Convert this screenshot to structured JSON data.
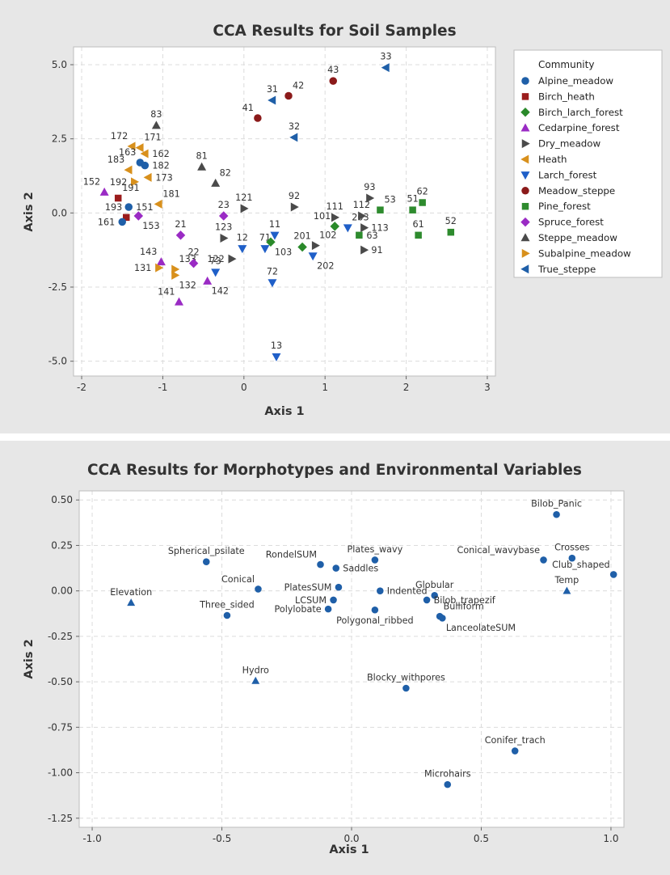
{
  "chart_data": [
    {
      "type": "scatter",
      "title": "CCA Results for Soil Samples",
      "xlabel": "Axis 1",
      "ylabel": "Axis 2",
      "xlim": [
        -2.1,
        3.1
      ],
      "ylim": [
        -5.5,
        5.6
      ],
      "xticks": [
        -2,
        -1,
        0,
        1,
        2,
        3
      ],
      "yticks": [
        -5.0,
        -2.5,
        0.0,
        2.5,
        5.0
      ],
      "xtick_labels": [
        "-2",
        "-1",
        "0",
        "1",
        "2",
        "3"
      ],
      "ytick_labels": [
        "-5.0",
        "-2.5",
        "0.0",
        "2.5",
        "5.0"
      ],
      "grid": true,
      "legend": {
        "title": "Community",
        "position": "right",
        "entries": [
          {
            "name": "Alpine_meadow",
            "marker": "circle",
            "color": "#1f5fa8"
          },
          {
            "name": "Birch_heath",
            "marker": "square",
            "color": "#9b1c1c"
          },
          {
            "name": "Birch_larch_forest",
            "marker": "diamond",
            "color": "#2a8a2a"
          },
          {
            "name": "Cedarpine_forest",
            "marker": "triangle-up",
            "color": "#9a2bc4"
          },
          {
            "name": "Dry_meadow",
            "marker": "triangle-right",
            "color": "#4a4a4a"
          },
          {
            "name": "Heath",
            "marker": "triangle-left",
            "color": "#d8901c"
          },
          {
            "name": "Larch_forest",
            "marker": "triangle-down",
            "color": "#1f5fc8"
          },
          {
            "name": "Meadow_steppe",
            "marker": "circle",
            "color": "#8b1a1a"
          },
          {
            "name": "Pine_forest",
            "marker": "square",
            "color": "#2e8b2e"
          },
          {
            "name": "Spruce_forest",
            "marker": "diamond",
            "color": "#9a2bc4"
          },
          {
            "name": "Steppe_meadow",
            "marker": "triangle-up",
            "color": "#4a4a4a"
          },
          {
            "name": "Subalpine_meadow",
            "marker": "triangle-right",
            "color": "#d8901c"
          },
          {
            "name": "True_steppe",
            "marker": "triangle-left",
            "color": "#1f5fa8"
          }
        ]
      },
      "points": [
        {
          "label": "33",
          "x": 1.75,
          "y": 4.9,
          "group": 12,
          "lpos": "t"
        },
        {
          "label": "43",
          "x": 1.1,
          "y": 4.45,
          "group": 7,
          "lpos": "t"
        },
        {
          "label": "42",
          "x": 0.55,
          "y": 3.95,
          "group": 7,
          "lpos": "tr"
        },
        {
          "label": "31",
          "x": 0.35,
          "y": 3.8,
          "group": 12,
          "lpos": "t"
        },
        {
          "label": "41",
          "x": 0.17,
          "y": 3.2,
          "group": 7,
          "lpos": "tl"
        },
        {
          "label": "32",
          "x": 0.62,
          "y": 2.55,
          "group": 12,
          "lpos": "t"
        },
        {
          "label": "83",
          "x": -1.08,
          "y": 2.95,
          "group": 10,
          "lpos": "t"
        },
        {
          "label": "172",
          "x": -1.38,
          "y": 2.25,
          "group": 5,
          "lpos": "tl"
        },
        {
          "label": "171",
          "x": -1.28,
          "y": 2.2,
          "group": 5,
          "lpos": "tr"
        },
        {
          "label": "162",
          "x": -1.22,
          "y": 2.0,
          "group": 5,
          "lpos": "r"
        },
        {
          "label": "163",
          "x": -1.28,
          "y": 1.7,
          "group": 0,
          "lpos": "tl"
        },
        {
          "label": "182",
          "x": -1.22,
          "y": 1.6,
          "group": 0,
          "lpos": "r"
        },
        {
          "label": "183",
          "x": -1.42,
          "y": 1.45,
          "group": 5,
          "lpos": "tl"
        },
        {
          "label": "173",
          "x": -1.18,
          "y": 1.2,
          "group": 5,
          "lpos": "r"
        },
        {
          "label": "192",
          "x": -1.35,
          "y": 1.05,
          "group": 11,
          "lpos": "l"
        },
        {
          "label": "81",
          "x": -0.52,
          "y": 1.55,
          "group": 10,
          "lpos": "t"
        },
        {
          "label": "82",
          "x": -0.35,
          "y": 1.0,
          "group": 10,
          "lpos": "tr"
        },
        {
          "label": "152",
          "x": -1.72,
          "y": 0.7,
          "group": 3,
          "lpos": "tl"
        },
        {
          "label": "191",
          "x": -1.55,
          "y": 0.5,
          "group": 1,
          "lpos": "tr"
        },
        {
          "label": "181",
          "x": -1.05,
          "y": 0.3,
          "group": 5,
          "lpos": "tr"
        },
        {
          "label": "151",
          "x": -1.42,
          "y": 0.2,
          "group": 0,
          "lpos": "r"
        },
        {
          "label": "193",
          "x": -1.45,
          "y": -0.15,
          "group": 1,
          "lpos": "tl"
        },
        {
          "label": "161",
          "x": -1.5,
          "y": -0.3,
          "group": 0,
          "lpos": "l"
        },
        {
          "label": "153",
          "x": -1.3,
          "y": -0.1,
          "group": 9,
          "lpos": "br"
        },
        {
          "label": "23",
          "x": -0.25,
          "y": -0.1,
          "group": 9,
          "lpos": "t"
        },
        {
          "label": "121",
          "x": 0.0,
          "y": 0.15,
          "group": 4,
          "lpos": "t"
        },
        {
          "label": "92",
          "x": 0.62,
          "y": 0.2,
          "group": 4,
          "lpos": "t"
        },
        {
          "label": "21",
          "x": -0.78,
          "y": -0.75,
          "group": 9,
          "lpos": "t"
        },
        {
          "label": "123",
          "x": -0.25,
          "y": -0.85,
          "group": 4,
          "lpos": "t"
        },
        {
          "label": "12",
          "x": -0.02,
          "y": -1.2,
          "group": 6,
          "lpos": "t"
        },
        {
          "label": "122",
          "x": -0.15,
          "y": -1.55,
          "group": 4,
          "lpos": "l"
        },
        {
          "label": "11",
          "x": 0.38,
          "y": -0.75,
          "group": 6,
          "lpos": "t"
        },
        {
          "label": "71",
          "x": 0.26,
          "y": -1.2,
          "group": 6,
          "lpos": "t"
        },
        {
          "label": "103",
          "x": 0.33,
          "y": -0.98,
          "group": 2,
          "lpos": "br"
        },
        {
          "label": "201",
          "x": 0.72,
          "y": -1.15,
          "group": 2,
          "lpos": "t"
        },
        {
          "label": "102",
          "x": 0.88,
          "y": -1.1,
          "group": 4,
          "lpos": "tr"
        },
        {
          "label": "202",
          "x": 0.85,
          "y": -1.45,
          "group": 6,
          "lpos": "br"
        },
        {
          "label": "101",
          "x": 1.12,
          "y": -0.45,
          "group": 2,
          "lpos": "tl"
        },
        {
          "label": "111",
          "x": 1.12,
          "y": -0.15,
          "group": 4,
          "lpos": "t"
        },
        {
          "label": "203",
          "x": 1.28,
          "y": -0.5,
          "group": 6,
          "lpos": "tr"
        },
        {
          "label": "112",
          "x": 1.45,
          "y": -0.1,
          "group": 4,
          "lpos": "t"
        },
        {
          "label": "93",
          "x": 1.55,
          "y": 0.5,
          "group": 4,
          "lpos": "t"
        },
        {
          "label": "53",
          "x": 1.68,
          "y": 0.1,
          "group": 8,
          "lpos": "tr"
        },
        {
          "label": "113",
          "x": 1.48,
          "y": -0.5,
          "group": 4,
          "lpos": "r"
        },
        {
          "label": "63",
          "x": 1.42,
          "y": -0.75,
          "group": 8,
          "lpos": "r"
        },
        {
          "label": "91",
          "x": 1.48,
          "y": -1.25,
          "group": 4,
          "lpos": "r"
        },
        {
          "label": "51",
          "x": 2.08,
          "y": 0.1,
          "group": 8,
          "lpos": "t"
        },
        {
          "label": "62",
          "x": 2.2,
          "y": 0.35,
          "group": 8,
          "lpos": "t"
        },
        {
          "label": "61",
          "x": 2.15,
          "y": -0.75,
          "group": 8,
          "lpos": "t"
        },
        {
          "label": "52",
          "x": 2.55,
          "y": -0.65,
          "group": 8,
          "lpos": "t"
        },
        {
          "label": "143",
          "x": -1.02,
          "y": -1.65,
          "group": 3,
          "lpos": "tl"
        },
        {
          "label": "131",
          "x": -1.05,
          "y": -1.85,
          "group": 11,
          "lpos": "l"
        },
        {
          "label": "133",
          "x": -0.85,
          "y": -1.9,
          "group": 11,
          "lpos": "tr"
        },
        {
          "label": "22",
          "x": -0.62,
          "y": -1.7,
          "group": 9,
          "lpos": "t"
        },
        {
          "label": "132",
          "x": -0.85,
          "y": -2.1,
          "group": 11,
          "lpos": "br"
        },
        {
          "label": "73",
          "x": -0.35,
          "y": -2.0,
          "group": 6,
          "lpos": "t"
        },
        {
          "label": "142",
          "x": -0.45,
          "y": -2.3,
          "group": 3,
          "lpos": "br"
        },
        {
          "label": "141",
          "x": -0.8,
          "y": -3.0,
          "group": 3,
          "lpos": "tl"
        },
        {
          "label": "72",
          "x": 0.35,
          "y": -2.35,
          "group": 6,
          "lpos": "t"
        },
        {
          "label": "13",
          "x": 0.4,
          "y": -4.85,
          "group": 6,
          "lpos": "t"
        }
      ]
    },
    {
      "type": "scatter",
      "title": "CCA Results for Morphotypes and Environmental Variables",
      "xlabel": "Axis 1",
      "ylabel": "Axis 2",
      "xlim": [
        -1.05,
        1.05
      ],
      "ylim": [
        -1.3,
        0.55
      ],
      "xticks": [
        -1.0,
        -0.5,
        0.0,
        0.5,
        1.0
      ],
      "yticks": [
        -1.25,
        -1.0,
        -0.75,
        -0.5,
        -0.25,
        0.0,
        0.25,
        0.5
      ],
      "xtick_labels": [
        "-1.0",
        "-0.5",
        "0.0",
        "0.5",
        "1.0"
      ],
      "ytick_labels": [
        "-1.25",
        "-1.00",
        "-0.75",
        "-0.50",
        "-0.25",
        "0.00",
        "0.25",
        "0.50"
      ],
      "grid": true,
      "series": [
        {
          "name": "Morphotypes",
          "marker": "circle",
          "color": "#1f5fa8"
        },
        {
          "name": "Environmental variables",
          "marker": "triangle-up",
          "color": "#1f5fa8"
        }
      ],
      "points": [
        {
          "label": "Bilob_Panic",
          "x": 0.79,
          "y": 0.42,
          "series": 0,
          "lpos": "t"
        },
        {
          "label": "Spherical_psilate",
          "x": -0.56,
          "y": 0.16,
          "series": 0,
          "lpos": "t"
        },
        {
          "label": "RondelSUM",
          "x": -0.12,
          "y": 0.145,
          "series": 0,
          "lpos": "tl"
        },
        {
          "label": "Plates_wavy",
          "x": 0.09,
          "y": 0.17,
          "series": 0,
          "lpos": "t"
        },
        {
          "label": "Saddles",
          "x": -0.06,
          "y": 0.125,
          "series": 0,
          "lpos": "r"
        },
        {
          "label": "Conical_wavybase",
          "x": 0.74,
          "y": 0.17,
          "series": 0,
          "lpos": "tl"
        },
        {
          "label": "Crosses",
          "x": 0.85,
          "y": 0.18,
          "series": 0,
          "lpos": "t"
        },
        {
          "label": "Club_shaped",
          "x": 1.01,
          "y": 0.09,
          "series": 0,
          "lpos": "tl"
        },
        {
          "label": "Conical",
          "x": -0.36,
          "y": 0.01,
          "series": 0,
          "lpos": "tl"
        },
        {
          "label": "PlatesSUM",
          "x": -0.05,
          "y": 0.02,
          "series": 0,
          "lpos": "l"
        },
        {
          "label": "Indented",
          "x": 0.11,
          "y": 0.0,
          "series": 0,
          "lpos": "r"
        },
        {
          "label": "Globular",
          "x": 0.32,
          "y": -0.025,
          "series": 0,
          "lpos": "t"
        },
        {
          "label": "Elevation",
          "x": -0.85,
          "y": -0.065,
          "series": 1,
          "lpos": "t"
        },
        {
          "label": "LCSUM",
          "x": -0.07,
          "y": -0.05,
          "series": 0,
          "lpos": "l"
        },
        {
          "label": "Temp",
          "x": 0.83,
          "y": 0.0,
          "series": 1,
          "lpos": "t"
        },
        {
          "label": "Bilob_trapezif",
          "x": 0.29,
          "y": -0.05,
          "series": 0,
          "lpos": "r"
        },
        {
          "label": "Three_sided",
          "x": -0.48,
          "y": -0.135,
          "series": 0,
          "lpos": "t"
        },
        {
          "label": "Polylobate",
          "x": -0.09,
          "y": -0.1,
          "series": 0,
          "lpos": "l"
        },
        {
          "label": "Polygonal_ribbed",
          "x": 0.09,
          "y": -0.105,
          "series": 0,
          "lpos": "b"
        },
        {
          "label": "Bulliform",
          "x": 0.34,
          "y": -0.14,
          "series": 0,
          "lpos": "tr"
        },
        {
          "label": "LanceolateSUM",
          "x": 0.35,
          "y": -0.15,
          "series": 0,
          "lpos": "br"
        },
        {
          "label": "Hydro",
          "x": -0.37,
          "y": -0.495,
          "series": 1,
          "lpos": "t"
        },
        {
          "label": "Blocky_withpores",
          "x": 0.21,
          "y": -0.535,
          "series": 0,
          "lpos": "t"
        },
        {
          "label": "Conifer_trach",
          "x": 0.63,
          "y": -0.88,
          "series": 0,
          "lpos": "t"
        },
        {
          "label": "Microhairs",
          "x": 0.37,
          "y": -1.065,
          "series": 0,
          "lpos": "t"
        }
      ]
    }
  ]
}
